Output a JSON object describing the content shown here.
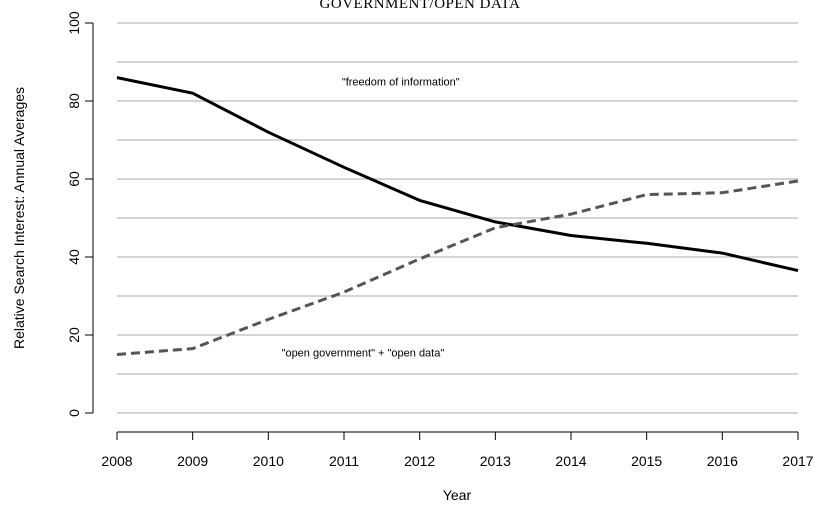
{
  "chart_data": {
    "type": "line",
    "title": "GOVERNMENT/OPEN DATA",
    "xlabel": "Year",
    "ylabel": "Relative Search Interest: Annual Averages",
    "x": [
      2008,
      2009,
      2010,
      2011,
      2012,
      2013,
      2014,
      2015,
      2016,
      2017
    ],
    "x_ticks": [
      "2008",
      "2009",
      "2010",
      "2011",
      "2012",
      "2013",
      "2014",
      "2015",
      "2016",
      "2017"
    ],
    "xlim": [
      2008,
      2017
    ],
    "ylim": [
      0,
      100
    ],
    "y_ticks": [
      "0",
      "20",
      "40",
      "60",
      "80",
      "100"
    ],
    "grid": "horizontal",
    "series": [
      {
        "name": "\"freedom of information\"",
        "style": "solid",
        "color": "#000000",
        "values": [
          86,
          82,
          72,
          63,
          54.5,
          49,
          45.5,
          43.5,
          41,
          36.5
        ]
      },
      {
        "name": "\"open government\" + \"open data\"",
        "style": "dashed",
        "color": "#555555",
        "values": [
          15,
          16.5,
          24,
          31,
          39.5,
          47.5,
          51,
          56,
          56.5,
          59.5
        ]
      }
    ],
    "annotations": [
      {
        "text": "\"freedom of information\"",
        "x": 2011.75,
        "y": 84
      },
      {
        "text": "\"open government\" + \"open data\"",
        "x": 2011.25,
        "y": 14.5
      }
    ]
  }
}
